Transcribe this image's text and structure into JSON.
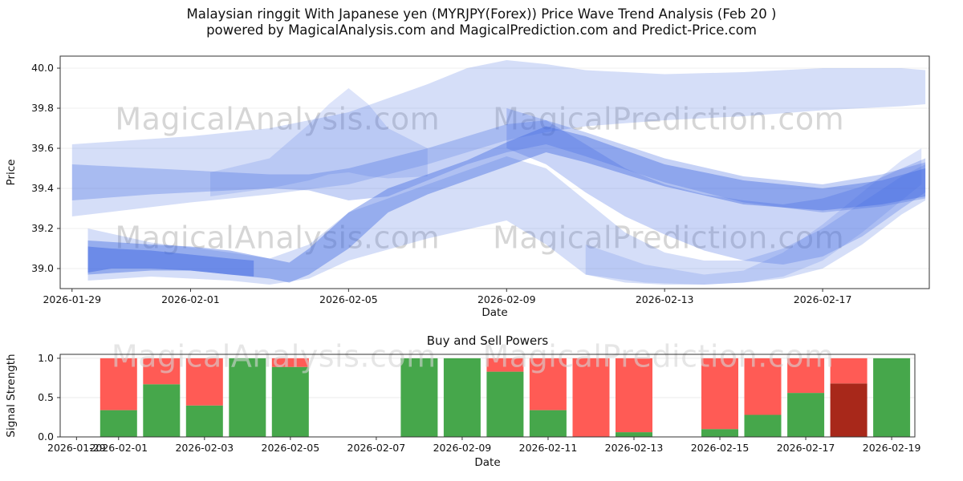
{
  "figure": {
    "title_line1": "Malaysian ringgit With Japanese yen (MYRJPY(Forex)) Price Wave Trend Analysis (Feb 20 )",
    "title_line2": "powered by MagicalAnalysis.com and MagicalPrediction.com and Predict-Price.com",
    "background": "#ffffff"
  },
  "watermark": {
    "texts": [
      "MagicalAnalysis.com",
      "MagicalPrediction.com"
    ],
    "color": "#d6d6d6"
  },
  "chart_data": [
    {
      "type": "area",
      "title": "",
      "xlabel": "Date",
      "ylabel": "Price",
      "ylim": [
        38.9,
        40.06
      ],
      "xlim": [
        -0.3,
        21.7
      ],
      "yticks": [
        39.0,
        39.2,
        39.4,
        39.6,
        39.8,
        40.0
      ],
      "xticks": [
        {
          "label": "2026-01-29",
          "day": 0
        },
        {
          "label": "2026-02-01",
          "day": 3
        },
        {
          "label": "2026-02-05",
          "day": 7
        },
        {
          "label": "2026-02-09",
          "day": 11
        },
        {
          "label": "2026-02-13",
          "day": 15
        },
        {
          "label": "2026-02-17",
          "day": 19
        }
      ],
      "band_color": "#4169e1",
      "grid": true,
      "legend": "none",
      "watermarks": [
        {
          "t": 0,
          "x": 0.25,
          "y": 0.28
        },
        {
          "t": 1,
          "x": 0.7,
          "y": 0.28
        },
        {
          "t": 0,
          "x": 0.25,
          "y": 0.79
        },
        {
          "t": 1,
          "x": 0.7,
          "y": 0.79
        }
      ],
      "bands": [
        {
          "alpha": 0.22,
          "x": [
            0,
            3,
            5,
            7,
            9,
            10,
            11,
            12,
            13,
            15,
            17,
            19,
            21,
            21.6
          ],
          "upper": [
            39.62,
            39.66,
            39.7,
            39.78,
            39.92,
            40.0,
            40.04,
            40.02,
            39.99,
            39.97,
            39.98,
            40.0,
            40.0,
            39.99
          ],
          "lower": [
            39.26,
            39.33,
            39.37,
            39.42,
            39.52,
            39.58,
            39.64,
            39.68,
            39.71,
            39.74,
            39.76,
            39.79,
            39.81,
            39.82
          ]
        },
        {
          "alpha": 0.3,
          "x": [
            0,
            2,
            4,
            5,
            6,
            7,
            8,
            9,
            10,
            11,
            12,
            13,
            15,
            17,
            19,
            20.5,
            21.6
          ],
          "upper": [
            39.52,
            39.5,
            39.48,
            39.47,
            39.47,
            39.5,
            39.55,
            39.6,
            39.66,
            39.72,
            39.74,
            39.68,
            39.55,
            39.46,
            39.42,
            39.47,
            39.53
          ],
          "lower": [
            39.34,
            39.37,
            39.39,
            39.4,
            39.39,
            39.34,
            39.36,
            39.44,
            39.52,
            39.58,
            39.62,
            39.56,
            39.43,
            39.33,
            39.28,
            39.31,
            39.35
          ]
        },
        {
          "alpha": 0.18,
          "x": [
            3.5,
            5,
            6,
            6.5,
            7,
            7.5,
            8,
            9
          ],
          "upper": [
            39.48,
            39.55,
            39.72,
            39.82,
            39.9,
            39.82,
            39.7,
            39.6
          ],
          "lower": [
            39.36,
            39.4,
            39.44,
            39.47,
            39.48,
            39.46,
            39.45,
            39.46
          ]
        },
        {
          "alpha": 0.42,
          "x": [
            0.4,
            2,
            3,
            4,
            5,
            5.5,
            6,
            7,
            8,
            9,
            10,
            11,
            12,
            13,
            15,
            17,
            19,
            20.5,
            21.6
          ],
          "upper": [
            39.14,
            39.12,
            39.11,
            39.09,
            39.05,
            39.03,
            39.1,
            39.28,
            39.4,
            39.47,
            39.54,
            39.63,
            39.71,
            39.66,
            39.52,
            39.44,
            39.4,
            39.44,
            39.5
          ],
          "lower": [
            38.97,
            38.99,
            38.99,
            38.97,
            38.95,
            38.93,
            38.97,
            39.1,
            39.28,
            39.37,
            39.44,
            39.51,
            39.58,
            39.53,
            39.41,
            39.32,
            39.29,
            39.32,
            39.36
          ]
        },
        {
          "alpha": 0.22,
          "x": [
            0.4,
            2,
            4,
            5,
            6,
            7,
            9,
            11,
            12,
            13,
            14,
            15,
            16,
            17,
            18,
            19,
            20,
            21,
            21.6
          ],
          "upper": [
            39.2,
            39.13,
            39.08,
            39.05,
            39.12,
            39.28,
            39.42,
            39.56,
            39.5,
            39.34,
            39.18,
            39.08,
            39.04,
            39.04,
            39.1,
            39.2,
            39.33,
            39.46,
            39.52
          ],
          "lower": [
            38.94,
            38.96,
            38.94,
            38.92,
            38.95,
            39.04,
            39.15,
            39.24,
            39.12,
            38.97,
            38.93,
            38.92,
            38.92,
            38.93,
            38.95,
            39.0,
            39.12,
            39.27,
            39.34
          ]
        },
        {
          "alpha": 0.28,
          "x": [
            11,
            12,
            13,
            14,
            15,
            16,
            17,
            18,
            19,
            20,
            21,
            21.6
          ],
          "upper": [
            39.8,
            39.74,
            39.62,
            39.5,
            39.42,
            39.37,
            39.34,
            39.32,
            39.35,
            39.41,
            39.5,
            39.55
          ],
          "lower": [
            39.6,
            39.52,
            39.38,
            39.26,
            39.17,
            39.09,
            39.04,
            39.02,
            39.06,
            39.16,
            39.3,
            39.38
          ]
        },
        {
          "alpha": 0.18,
          "x": [
            13,
            14.5,
            16,
            17,
            18,
            19,
            20,
            21,
            21.5
          ],
          "upper": [
            39.12,
            39.02,
            38.97,
            38.99,
            39.08,
            39.22,
            39.38,
            39.54,
            39.6
          ],
          "lower": [
            38.97,
            38.93,
            38.92,
            38.93,
            38.96,
            39.04,
            39.18,
            39.34,
            39.42
          ]
        },
        {
          "alpha": 0.5,
          "x": [
            0.4,
            1,
            2,
            3,
            4,
            4.6
          ],
          "upper": [
            39.11,
            39.1,
            39.09,
            39.07,
            39.05,
            39.04
          ],
          "lower": [
            38.98,
            39.0,
            39.0,
            38.99,
            38.97,
            38.96
          ]
        }
      ]
    },
    {
      "type": "bar",
      "title": "Buy and Sell Powers",
      "xlabel": "Date",
      "ylabel": "Signal Strength",
      "ylim": [
        0,
        1.05
      ],
      "xlim": [
        1.64,
        21.54
      ],
      "yticks": [
        0.0,
        0.5,
        1.0
      ],
      "grid": true,
      "bar_width_days": 0.86,
      "colors": {
        "buy": "#46a74b",
        "sell": "#ff5b55",
        "strong_sell": "#a8281a"
      },
      "watermarks": [
        {
          "t": 0,
          "x": 0.25,
          "y": 0.05
        },
        {
          "t": 1,
          "x": 0.7,
          "y": 0.05
        }
      ],
      "xticks": [
        {
          "label": "2026-01-29",
          "day": 2.02
        },
        {
          "label": "2026-02-01",
          "day": 3
        },
        {
          "label": "2026-02-03",
          "day": 5
        },
        {
          "label": "2026-02-05",
          "day": 7
        },
        {
          "label": "2026-02-07",
          "day": 9
        },
        {
          "label": "2026-02-09",
          "day": 11
        },
        {
          "label": "2026-02-11",
          "day": 13
        },
        {
          "label": "2026-02-13",
          "day": 15
        },
        {
          "label": "2026-02-15",
          "day": 17
        },
        {
          "label": "2026-02-17",
          "day": 19
        },
        {
          "label": "2026-02-19",
          "day": 21
        }
      ],
      "bars": [
        {
          "date": "2026-02-01",
          "day": 3,
          "segments": [
            {
              "value": 0.34,
              "type": "buy"
            },
            {
              "value": 0.66,
              "type": "sell"
            }
          ]
        },
        {
          "date": "2026-02-02",
          "day": 4,
          "segments": [
            {
              "value": 0.67,
              "type": "buy"
            },
            {
              "value": 0.33,
              "type": "sell"
            }
          ]
        },
        {
          "date": "2026-02-03",
          "day": 5,
          "segments": [
            {
              "value": 0.4,
              "type": "buy"
            },
            {
              "value": 0.6,
              "type": "sell"
            }
          ]
        },
        {
          "date": "2026-02-04",
          "day": 6,
          "segments": [
            {
              "value": 1.0,
              "type": "buy"
            }
          ]
        },
        {
          "date": "2026-02-05",
          "day": 7,
          "segments": [
            {
              "value": 0.89,
              "type": "buy"
            },
            {
              "value": 0.11,
              "type": "sell"
            }
          ]
        },
        {
          "date": "2026-02-08",
          "day": 10,
          "segments": [
            {
              "value": 1.0,
              "type": "buy"
            }
          ]
        },
        {
          "date": "2026-02-09",
          "day": 11,
          "segments": [
            {
              "value": 1.0,
              "type": "buy"
            }
          ]
        },
        {
          "date": "2026-02-10",
          "day": 12,
          "segments": [
            {
              "value": 0.83,
              "type": "buy"
            },
            {
              "value": 0.17,
              "type": "sell"
            }
          ]
        },
        {
          "date": "2026-02-11",
          "day": 13,
          "segments": [
            {
              "value": 0.34,
              "type": "buy"
            },
            {
              "value": 0.66,
              "type": "sell"
            }
          ]
        },
        {
          "date": "2026-02-12",
          "day": 14,
          "segments": [
            {
              "value": 1.0,
              "type": "sell"
            }
          ]
        },
        {
          "date": "2026-02-13",
          "day": 15,
          "segments": [
            {
              "value": 0.06,
              "type": "buy"
            },
            {
              "value": 0.94,
              "type": "sell"
            }
          ]
        },
        {
          "date": "2026-02-15",
          "day": 17,
          "segments": [
            {
              "value": 0.1,
              "type": "buy"
            },
            {
              "value": 0.9,
              "type": "sell"
            }
          ]
        },
        {
          "date": "2026-02-16",
          "day": 18,
          "segments": [
            {
              "value": 0.28,
              "type": "buy"
            },
            {
              "value": 0.72,
              "type": "sell"
            }
          ]
        },
        {
          "date": "2026-02-17",
          "day": 19,
          "segments": [
            {
              "value": 0.56,
              "type": "buy"
            },
            {
              "value": 0.44,
              "type": "sell"
            }
          ]
        },
        {
          "date": "2026-02-18",
          "day": 20,
          "segments": [
            {
              "value": 0.68,
              "type": "strong_sell"
            },
            {
              "value": 0.32,
              "type": "sell"
            }
          ]
        },
        {
          "date": "2026-02-19",
          "day": 21,
          "segments": [
            {
              "value": 1.0,
              "type": "buy"
            }
          ]
        }
      ]
    }
  ]
}
